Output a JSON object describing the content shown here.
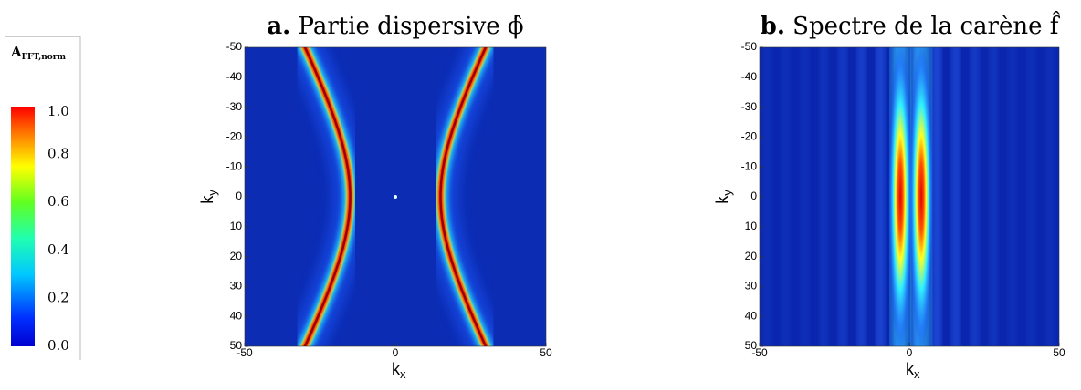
{
  "chart_data": [
    {
      "type": "heatmap",
      "label": "a.",
      "title": "Partie dispersive ϕ̂",
      "xlabel": "k",
      "xlabel_subscript": "x",
      "ylabel": "k",
      "ylabel_subscript": "y",
      "xlim": [
        -50,
        50
      ],
      "xticks": [
        -50,
        0,
        50
      ],
      "ylim": [
        -50,
        50
      ],
      "yticks": [
        -50,
        -40,
        -30,
        -20,
        -10,
        0,
        10,
        20,
        30,
        40,
        50
      ],
      "yinverted": true
    },
    {
      "type": "heatmap",
      "label": "b.",
      "title": "Spectre de la carène f̂",
      "xlabel": "k",
      "xlabel_subscript": "x",
      "ylabel": "k",
      "ylabel_subscript": "y",
      "xlim": [
        -50,
        50
      ],
      "xticks": [
        -50,
        0,
        50
      ],
      "ylim": [
        -50,
        50
      ],
      "yticks": [
        -50,
        -40,
        -30,
        -20,
        -10,
        0,
        10,
        20,
        30,
        40,
        50
      ],
      "yinverted": true
    }
  ],
  "colorbar": {
    "title": "A",
    "title_subscript": "FFT,norm",
    "lim": [
      0,
      1
    ],
    "ticks": [
      {
        "value": 0,
        "label": "0.0"
      },
      {
        "value": 0.2,
        "label": "0.2"
      },
      {
        "value": 0.4,
        "label": "0.4"
      },
      {
        "value": 0.6,
        "label": "0.6"
      },
      {
        "value": 0.8,
        "label": "0.8"
      },
      {
        "value": 1,
        "label": "1.0"
      }
    ]
  }
}
